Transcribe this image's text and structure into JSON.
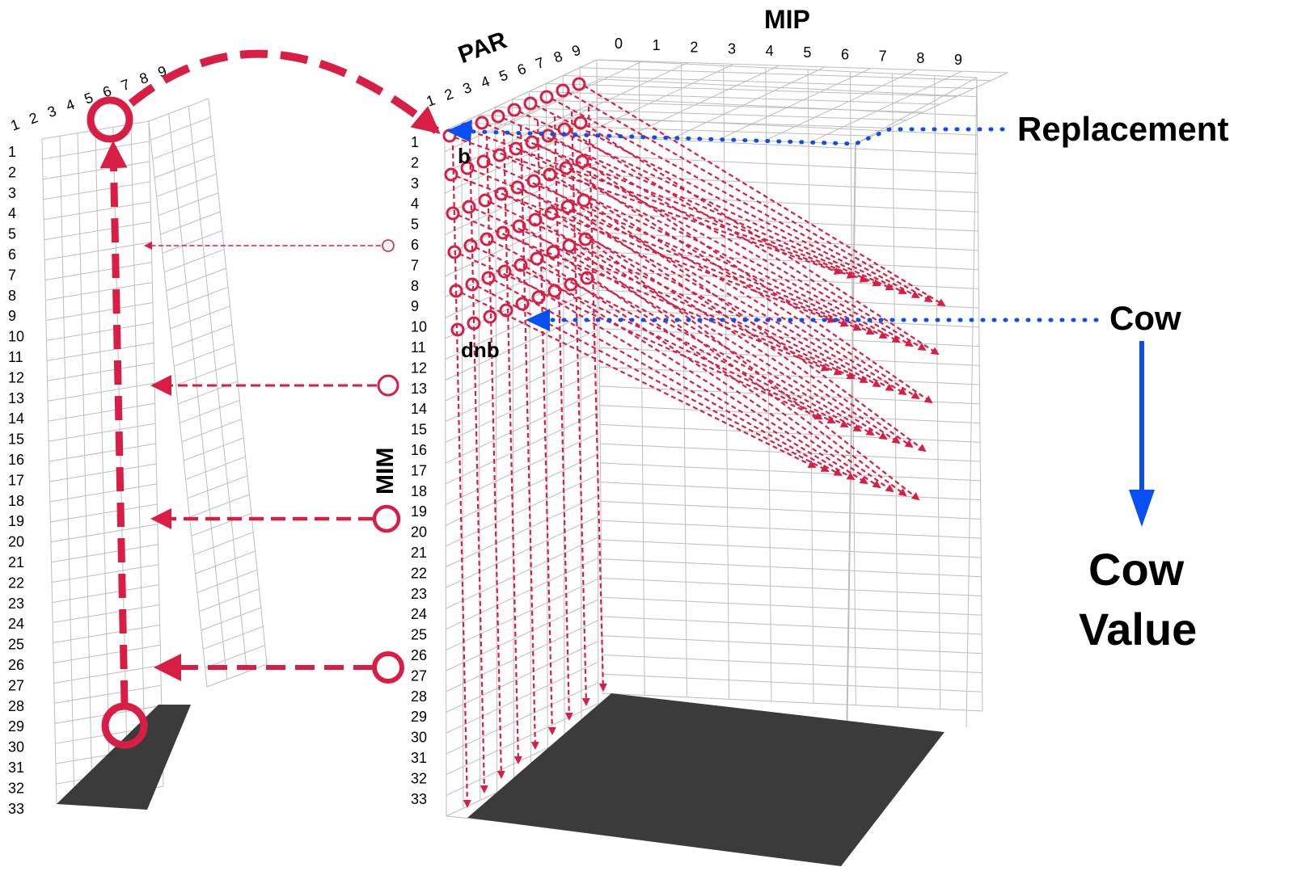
{
  "labels": {
    "mip": "MIP",
    "par": "PAR",
    "mim": "MIM",
    "replacement": "Replacement",
    "cow": "Cow",
    "cow_value_line1": "Cow",
    "cow_value_line2": "Value",
    "b": "b",
    "dnb": "dnb"
  },
  "axes": {
    "mip_ticks": [
      "0",
      "1",
      "2",
      "3",
      "4",
      "5",
      "6",
      "7",
      "8",
      "9"
    ],
    "par_ticks_main": [
      "1",
      "2",
      "3",
      "4",
      "5",
      "6",
      "7",
      "8",
      "9"
    ],
    "par_ticks_small": [
      "1",
      "2",
      "3",
      "4",
      "5",
      "6",
      "7",
      "8",
      "9"
    ],
    "mim_ticks": [
      "1",
      "2",
      "3",
      "4",
      "5",
      "6",
      "7",
      "8",
      "9",
      "10",
      "11",
      "12",
      "13",
      "14",
      "15",
      "16",
      "17",
      "18",
      "19",
      "20",
      "21",
      "22",
      "23",
      "24",
      "25",
      "26",
      "27",
      "28",
      "29",
      "30",
      "31",
      "32",
      "33"
    ]
  },
  "colors": {
    "grid": "#bdbdbd",
    "red": "#d81e45",
    "blue": "#0a4ff2",
    "floor": "#3b3b3b",
    "text": "#000000"
  }
}
